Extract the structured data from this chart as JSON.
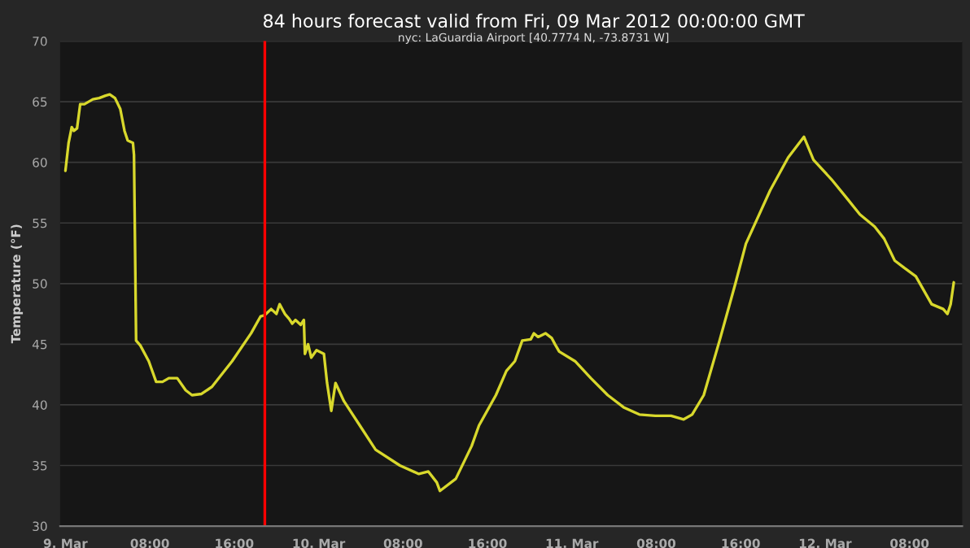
{
  "chart_data": {
    "type": "line",
    "title": "84 hours forecast valid from Fri, 09 Mar 2012 00:00:00 GMT",
    "subtitle": "nyc: LaGuardia Airport [40.7774 N, -73.8731 W]",
    "ylabel": "Temperature (°F)",
    "x": [
      "2012-03-09T00:00",
      "2012-03-09T00:18",
      "2012-03-09T00:36",
      "2012-03-09T00:48",
      "2012-03-09T01:06",
      "2012-03-09T01:24",
      "2012-03-09T01:48",
      "2012-03-09T02:36",
      "2012-03-09T03:12",
      "2012-03-09T03:48",
      "2012-03-09T04:12",
      "2012-03-09T04:42",
      "2012-03-09T05:12",
      "2012-03-09T05:36",
      "2012-03-09T05:54",
      "2012-03-09T06:24",
      "2012-03-09T06:30",
      "2012-03-09T06:42",
      "2012-03-09T07:06",
      "2012-03-09T07:54",
      "2012-03-09T08:36",
      "2012-03-09T09:12",
      "2012-03-09T09:48",
      "2012-03-09T10:36",
      "2012-03-09T11:24",
      "2012-03-09T12:00",
      "2012-03-09T12:54",
      "2012-03-09T13:54",
      "2012-03-09T15:48",
      "2012-03-09T17:36",
      "2012-03-09T18:30",
      "2012-03-09T18:54",
      "2012-03-09T19:30",
      "2012-03-09T20:00",
      "2012-03-09T20:18",
      "2012-03-09T20:48",
      "2012-03-09T21:12",
      "2012-03-09T21:30",
      "2012-03-09T21:48",
      "2012-03-09T22:18",
      "2012-03-09T22:36",
      "2012-03-09T22:42",
      "2012-03-09T23:00",
      "2012-03-09T23:18",
      "2012-03-09T23:48",
      "2012-03-10T00:30",
      "2012-03-10T00:48",
      "2012-03-10T01:12",
      "2012-03-10T01:36",
      "2012-03-10T02:24",
      "2012-03-10T03:54",
      "2012-03-10T05:24",
      "2012-03-10T07:42",
      "2012-03-10T09:30",
      "2012-03-10T10:24",
      "2012-03-10T11:12",
      "2012-03-10T11:30",
      "2012-03-10T13:00",
      "2012-03-10T14:30",
      "2012-03-10T15:12",
      "2012-03-10T16:48",
      "2012-03-10T17:48",
      "2012-03-10T18:36",
      "2012-03-10T19:18",
      "2012-03-10T20:06",
      "2012-03-10T20:24",
      "2012-03-10T20:48",
      "2012-03-10T21:30",
      "2012-03-10T22:06",
      "2012-03-10T22:24",
      "2012-03-10T22:48",
      "2012-03-11T00:18",
      "2012-03-11T01:48",
      "2012-03-11T03:24",
      "2012-03-11T04:54",
      "2012-03-11T06:24",
      "2012-03-11T07:54",
      "2012-03-11T09:24",
      "2012-03-11T10:36",
      "2012-03-11T11:24",
      "2012-03-11T12:30",
      "2012-03-11T14:00",
      "2012-03-11T15:30",
      "2012-03-11T16:30",
      "2012-03-11T18:48",
      "2012-03-11T20:30",
      "2012-03-11T22:00",
      "2012-03-11T22:54",
      "2012-03-12T00:36",
      "2012-03-12T02:06",
      "2012-03-12T03:18",
      "2012-03-12T04:42",
      "2012-03-12T05:36",
      "2012-03-12T06:36",
      "2012-03-12T07:30",
      "2012-03-12T08:36",
      "2012-03-12T10:06",
      "2012-03-12T11:12",
      "2012-03-12T11:36",
      "2012-03-12T11:54",
      "2012-03-12T12:12"
    ],
    "series": [
      {
        "color": "#d8d82c",
        "values": [
          59.3,
          61.6,
          62.9,
          62.6,
          62.8,
          64.8,
          64.8,
          65.2,
          65.3,
          65.5,
          65.6,
          65.3,
          64.4,
          62.6,
          61.8,
          61.6,
          60.6,
          45.3,
          44.9,
          43.6,
          41.9,
          41.9,
          42.2,
          42.2,
          41.2,
          40.8,
          40.9,
          41.5,
          43.6,
          45.9,
          47.3,
          47.4,
          47.9,
          47.5,
          48.3,
          47.5,
          47.1,
          46.7,
          47.0,
          46.6,
          47.0,
          44.2,
          45.0,
          43.9,
          44.5,
          44.2,
          41.8,
          39.5,
          41.8,
          40.3,
          38.3,
          36.3,
          35.0,
          34.3,
          34.5,
          33.6,
          32.9,
          33.9,
          36.6,
          38.3,
          40.8,
          42.8,
          43.6,
          45.3,
          45.4,
          45.9,
          45.6,
          45.9,
          45.5,
          45.0,
          44.4,
          43.6,
          42.2,
          40.8,
          39.8,
          39.2,
          39.1,
          39.1,
          38.8,
          39.2,
          40.8,
          45.3,
          50.0,
          53.3,
          57.7,
          60.4,
          62.1,
          60.2,
          58.6,
          57.0,
          55.7,
          54.7,
          53.7,
          51.9,
          51.3,
          50.6,
          48.3,
          47.9,
          47.5,
          48.3,
          50.1
        ]
      }
    ],
    "xlim": [
      "2012-03-08T23:30",
      "2012-03-12T13:00"
    ],
    "ylim": [
      30,
      70
    ],
    "xticks": [
      {
        "value": "2012-03-09",
        "label": "9. Mar"
      },
      {
        "value": "2012-03-09T08:00",
        "label": "08:00"
      },
      {
        "value": "2012-03-09T16:00",
        "label": "16:00"
      },
      {
        "value": "2012-03-10",
        "label": "10. Mar"
      },
      {
        "value": "2012-03-10T08:00",
        "label": "08:00"
      },
      {
        "value": "2012-03-10T16:00",
        "label": "16:00"
      },
      {
        "value": "2012-03-11",
        "label": "11. Mar"
      },
      {
        "value": "2012-03-11T08:00",
        "label": "08:00"
      },
      {
        "value": "2012-03-11T16:00",
        "label": "16:00"
      },
      {
        "value": "2012-03-12",
        "label": "12. Mar"
      },
      {
        "value": "2012-03-12T08:00",
        "label": "08:00"
      }
    ],
    "yticks": [
      30,
      35,
      40,
      45,
      50,
      55,
      60,
      65,
      70
    ],
    "ref_lines": [
      {
        "axis": "x",
        "value": "2012-03-09T18:54",
        "color": "#ff0000"
      }
    ],
    "grid": "y",
    "legend": false,
    "marker": "none",
    "line_style": "solid"
  }
}
